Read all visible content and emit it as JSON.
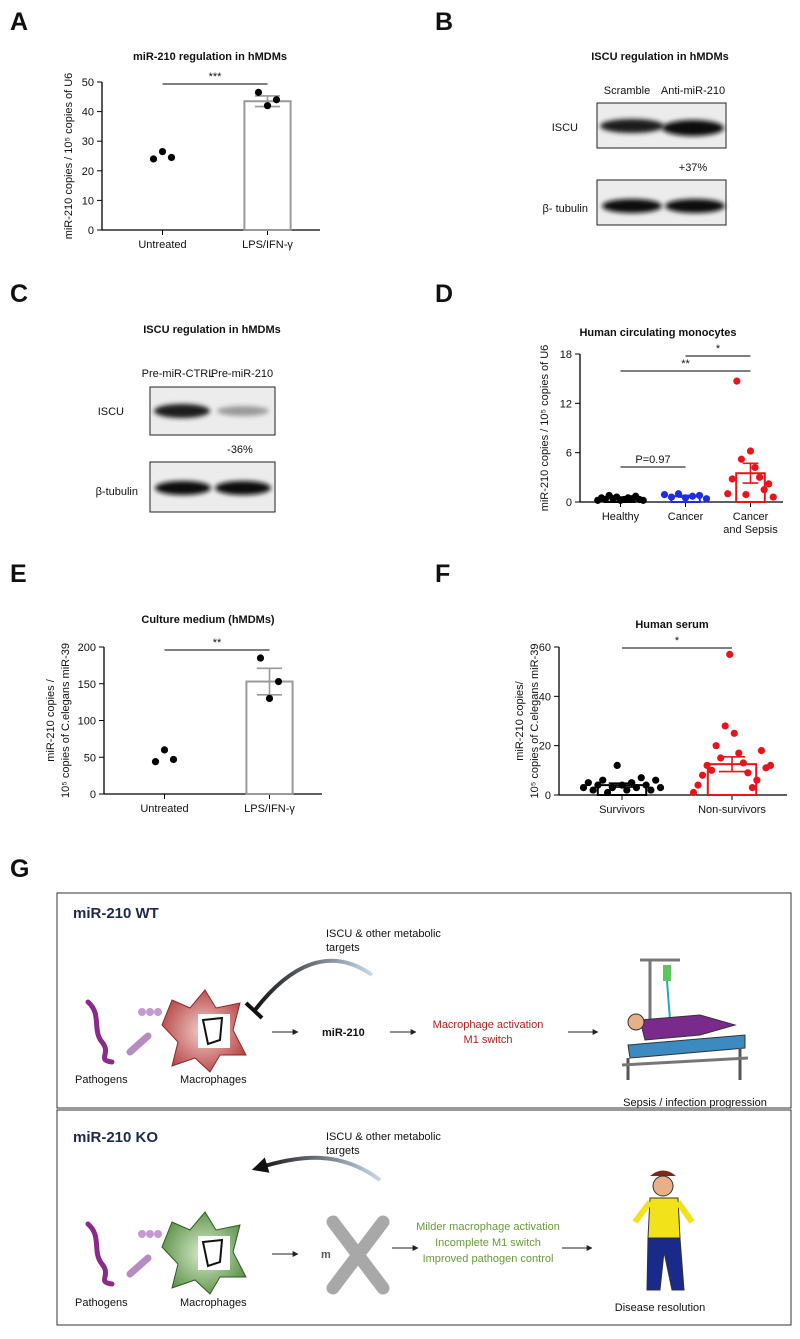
{
  "chart_data": [
    {
      "type": "bar",
      "panel": "A",
      "title": "miR-210 regulation in hMDMs",
      "y_label": [
        "miR-210 copies / 10⁵ copies of U6"
      ],
      "categories": [
        "Untreated",
        "LPS/IFN-γ"
      ],
      "values": [
        null,
        43.5
      ],
      "errors": [
        null,
        1.8
      ],
      "bar_colors": [
        "#999999",
        "#999999"
      ],
      "point_colors": [
        "#000000",
        "#000000"
      ],
      "points": [
        [
          24,
          26.5,
          24.5
        ],
        [
          46.5,
          42,
          44
        ]
      ],
      "ylim": [
        0,
        50
      ],
      "yticks": [
        0,
        10,
        20,
        30,
        40,
        50
      ],
      "significance": [
        {
          "label": "***",
          "pair": [
            0,
            1
          ]
        }
      ]
    },
    {
      "type": "bar",
      "panel": "D",
      "title": "Human circulating monocytes",
      "y_label": [
        "miR-210 copies / 10⁵ copies of U6"
      ],
      "categories": [
        "Healthy",
        "Cancer",
        "Cancer\nand Sepsis"
      ],
      "values": [
        0.5,
        0.7,
        3.5
      ],
      "errors": [
        0.1,
        0.1,
        1.2
      ],
      "bar_colors": [
        "#000000",
        "#1f2de0",
        "#e8141b"
      ],
      "point_colors": [
        "#000000",
        "#1f2de0",
        "#e8141b"
      ],
      "points": [
        [
          0.2,
          0.5,
          0.3,
          0.8,
          0.4,
          0.6,
          0.2,
          0.3,
          0.5,
          0.4,
          0.7,
          0.3,
          0.2
        ],
        [
          0.9,
          0.6,
          1.0,
          0.5,
          0.7,
          0.8,
          0.4
        ],
        [
          1.0,
          2.8,
          14.7,
          5.2,
          0.9,
          6.2,
          4.2,
          3.0,
          1.5,
          2.2,
          0.6
        ]
      ],
      "ylim": [
        0,
        18
      ],
      "yticks": [
        0,
        6,
        12,
        18
      ],
      "significance": [
        {
          "label": "*",
          "pair": [
            1,
            2
          ]
        },
        {
          "label": "**",
          "pair": [
            0,
            2
          ]
        },
        {
          "label": "P=0.97",
          "pair": [
            0,
            1
          ]
        }
      ]
    },
    {
      "type": "bar",
      "panel": "E",
      "title": "Culture medium (hMDMs)",
      "y_label": [
        "miR-210 copies /",
        "10⁵ copies of C.elegans miR-39"
      ],
      "categories": [
        "Untreated",
        "LPS/IFN-γ"
      ],
      "values": [
        null,
        153
      ],
      "errors": [
        null,
        18
      ],
      "bar_colors": [
        "#999999",
        "#999999"
      ],
      "point_colors": [
        "#000000",
        "#000000"
      ],
      "points": [
        [
          44,
          60,
          47
        ],
        [
          185,
          130,
          153
        ]
      ],
      "ylim": [
        0,
        200
      ],
      "yticks": [
        0,
        50,
        100,
        150,
        200
      ],
      "significance": [
        {
          "label": "**",
          "pair": [
            0,
            1
          ]
        }
      ]
    },
    {
      "type": "bar",
      "panel": "F",
      "title": "Human serum",
      "y_label": [
        "miR-210 copies/",
        "10⁵ copies of C.elegans miR-39"
      ],
      "categories": [
        "Survivors",
        "Non-survivors"
      ],
      "values": [
        4.0,
        12.5
      ],
      "errors": [
        0.8,
        3.0
      ],
      "bar_colors": [
        "#000000",
        "#e8141b"
      ],
      "point_colors": [
        "#000000",
        "#e8141b"
      ],
      "points": [
        [
          3,
          5,
          2,
          4,
          6,
          1,
          3,
          12,
          4,
          2,
          5,
          3,
          7,
          4,
          2,
          6,
          3
        ],
        [
          1,
          4,
          8,
          12,
          10,
          20,
          15,
          28,
          57,
          25,
          17,
          13,
          9,
          3,
          6,
          18,
          11,
          12
        ]
      ],
      "ylim": [
        0,
        60
      ],
      "yticks": [
        0,
        20,
        40,
        60
      ],
      "significance": [
        {
          "label": "*",
          "pair": [
            0,
            1
          ]
        }
      ]
    }
  ],
  "blots": [
    {
      "panel": "B",
      "title": "ISCU regulation in hMDMs",
      "lanes": [
        "Scramble",
        "Anti-miR-210"
      ],
      "rows": [
        "ISCU",
        "β- tubulin"
      ],
      "change": "+37%"
    },
    {
      "panel": "C",
      "title": "ISCU regulation in hMDMs",
      "lanes": [
        "Pre-miR-CTRL",
        "Pre-miR-210"
      ],
      "rows": [
        "ISCU",
        "β-tubulin"
      ],
      "change": "-36%"
    }
  ],
  "diagram": {
    "panel": "G",
    "rows": [
      {
        "title": "miR-210 WT",
        "targets": [
          "ISCU & other metabolic",
          "targets"
        ],
        "pathogens": "Pathogens",
        "macrophages": "Macrophages",
        "mirna": "miR-210",
        "effect": [
          "Macrophage activation",
          "M1 switch"
        ],
        "outcome": "Sepsis / infection progression"
      },
      {
        "title": "miR-210 KO",
        "targets": [
          "ISCU & other metabolic",
          "targets"
        ],
        "pathogens": "Pathogens",
        "macrophages": "Macrophages",
        "mirna": "m",
        "effect": [
          "Milder macrophage activation",
          "Incomplete M1 switch",
          "Improved pathogen control"
        ],
        "outcome": "Disease resolution"
      }
    ]
  }
}
